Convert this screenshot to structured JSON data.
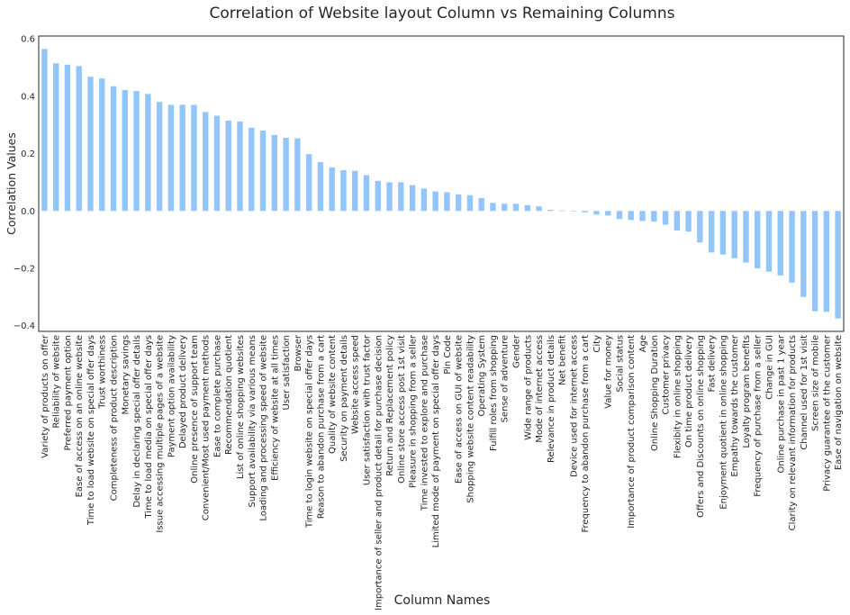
{
  "chart_data": {
    "type": "bar",
    "title": "Correlation of Website layout Column vs Remaining Columns",
    "xlabel": "Column Names",
    "ylabel": "Correlation Values",
    "ylim": [
      -0.42,
      0.61
    ],
    "yticks": [
      -0.4,
      -0.2,
      0.0,
      0.2,
      0.4,
      0.6
    ],
    "ytick_labels": [
      "−0.4",
      "−0.2",
      "0.0",
      "0.2",
      "0.4",
      "0.6"
    ],
    "grid": false,
    "bar_color": "#92c5f9",
    "categories": [
      "Variety of products on offer",
      "Reliability of website",
      "Preferred payment option",
      "Ease of access on an online website",
      "Time to load website on special offer days",
      "Trust worthiness",
      "Completeness of product description",
      "Monetary savings",
      "Delay in declaring special offer details",
      "Time to load media on special offer days",
      "Issue accessing multiple pages of a website",
      "Payment option availability",
      "Delayed product delivery",
      "Online presence of support team",
      "Convenient/Most used payment methods",
      "Ease to complete purchase",
      "Recommendation quotient",
      "List of online shopping websites",
      "Support availability via various means",
      "Loading and processing speed of website",
      "Efficiency of website at all times",
      "User satisfaction",
      "Browser",
      "Time to login website on special offer days",
      "Reason to abandon purchase from a cart",
      "Quality of website content",
      "Security on payment details",
      "Website access speed",
      "User satisfaction with trust factor",
      "Importance of seller and product detail for purchase decision",
      "Return and Replacement policy",
      "Online store access post 1st visit",
      "Pleasure in shopping from a seller",
      "Time invested to explore and purchase",
      "Limited mode of payment on special offer days",
      "Pin Code",
      "Ease of access on GUI of website",
      "Shopping website content readability",
      "Operating System",
      "Fulfill roles from shopping",
      "Sense of adventure",
      "Gender",
      "Wide range of products",
      "Mode of internet access",
      "Relevance in product details",
      "Net benefit",
      "Device used for internet access",
      "Frequency to abandon purchase from a cart",
      "City",
      "Value for money",
      "Social status",
      "Importance of product comparison content",
      "Age",
      "Online Shopping Duration",
      "Customer privacy",
      "Flexibity in online shopping",
      "On time product delivery",
      "Offers and Discounts on online shopping",
      "Fast delivery",
      "Enjoyment quotient in online shopping",
      "Empathy towards the customer",
      "Loyalty program benefits",
      "Frequency of purchase from a seller",
      "Change in GUI",
      "Online purchase in past 1 year",
      "Clarity on relevant information for products",
      "Channel used for 1st visit",
      "Screen size of mobile",
      "Privacy guarantee of the customer",
      "Ease of navigation on website"
    ],
    "values": [
      0.565,
      0.515,
      0.51,
      0.505,
      0.468,
      0.462,
      0.435,
      0.422,
      0.418,
      0.408,
      0.38,
      0.37,
      0.37,
      0.37,
      0.345,
      0.332,
      0.315,
      0.312,
      0.29,
      0.28,
      0.265,
      0.255,
      0.253,
      0.198,
      0.17,
      0.152,
      0.142,
      0.14,
      0.125,
      0.105,
      0.1,
      0.1,
      0.09,
      0.078,
      0.068,
      0.065,
      0.058,
      0.055,
      0.045,
      0.028,
      0.025,
      0.025,
      0.02,
      0.016,
      0.004,
      0.002,
      0.0,
      -0.005,
      -0.013,
      -0.016,
      -0.028,
      -0.032,
      -0.035,
      -0.037,
      -0.048,
      -0.068,
      -0.072,
      -0.11,
      -0.145,
      -0.152,
      -0.165,
      -0.18,
      -0.2,
      -0.212,
      -0.225,
      -0.25,
      -0.3,
      -0.35,
      -0.352,
      -0.375
    ]
  }
}
